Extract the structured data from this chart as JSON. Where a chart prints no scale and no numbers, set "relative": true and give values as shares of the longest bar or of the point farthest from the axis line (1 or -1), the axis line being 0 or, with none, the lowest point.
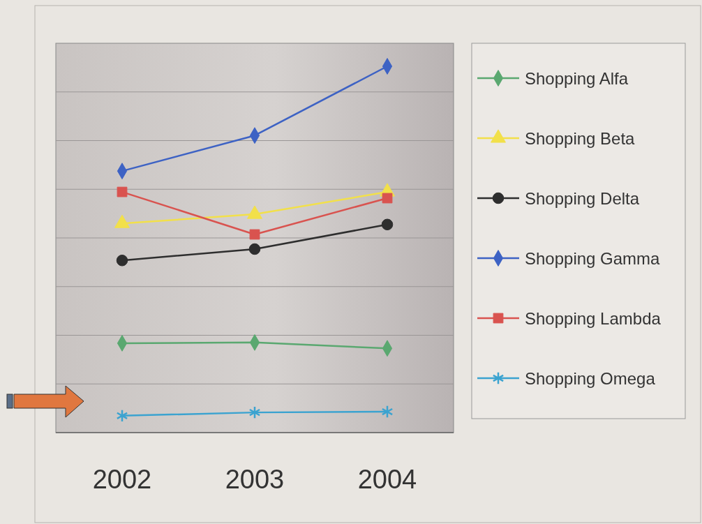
{
  "chart_data": {
    "type": "line",
    "relative": true,
    "categories": [
      "2002",
      "2003",
      "2004"
    ],
    "grid": true,
    "legend": "right",
    "series": [
      {
        "name": "Shopping Alfa",
        "color": "#5aa870",
        "marker": "diamond",
        "values": [
          0.244,
          0.246,
          0.23
        ]
      },
      {
        "name": "Shopping Beta",
        "color": "#f2e04a",
        "marker": "triangle",
        "values": [
          0.571,
          0.596,
          0.657
        ]
      },
      {
        "name": "Shopping Delta",
        "color": "#2e2e2e",
        "marker": "circle",
        "values": [
          0.47,
          0.501,
          0.568
        ]
      },
      {
        "name": "Shopping Gamma",
        "color": "#3d62c4",
        "marker": "diamond",
        "values": [
          0.714,
          0.811,
          1
        ]
      },
      {
        "name": "Shopping Lambda",
        "color": "#d9534f",
        "marker": "square",
        "values": [
          0.657,
          0.541,
          0.64
        ]
      },
      {
        "name": "Shopping Omega",
        "color": "#3ba3d0",
        "marker": "cross",
        "values": [
          0.046,
          0.055,
          0.057
        ]
      }
    ]
  }
}
